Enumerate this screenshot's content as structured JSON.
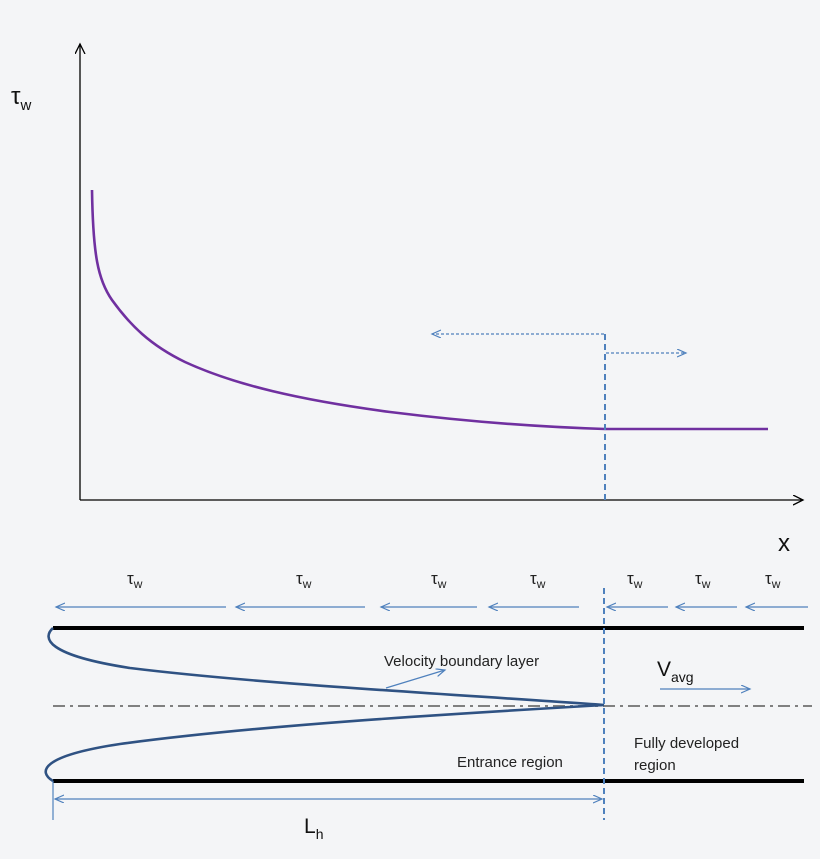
{
  "graph": {
    "y_axis": {
      "symbol": "τ",
      "subscript": "w"
    },
    "x_axis": {
      "symbol": "x"
    }
  },
  "pipe": {
    "shear_labels": [
      {
        "symbol": "τ",
        "subscript": "w"
      },
      {
        "symbol": "τ",
        "subscript": "w"
      },
      {
        "symbol": "τ",
        "subscript": "w"
      },
      {
        "symbol": "τ",
        "subscript": "w"
      },
      {
        "symbol": "τ",
        "subscript": "w"
      },
      {
        "symbol": "τ",
        "subscript": "w"
      },
      {
        "symbol": "τ",
        "subscript": "w"
      }
    ],
    "boundary_layer_label": "Velocity boundary layer",
    "velocity": {
      "symbol": "V",
      "subscript": "avg"
    },
    "entrance_label": "Entrance region",
    "developed_label": [
      "Fully developed",
      "region"
    ],
    "length": {
      "symbol": "L",
      "subscript": "h"
    }
  },
  "colors": {
    "curve": "#7030a0",
    "accent_blue": "#4f81bd",
    "profile": "#2f5283",
    "wall": "#000000",
    "centerline": "#808080",
    "axis": "#000000"
  }
}
